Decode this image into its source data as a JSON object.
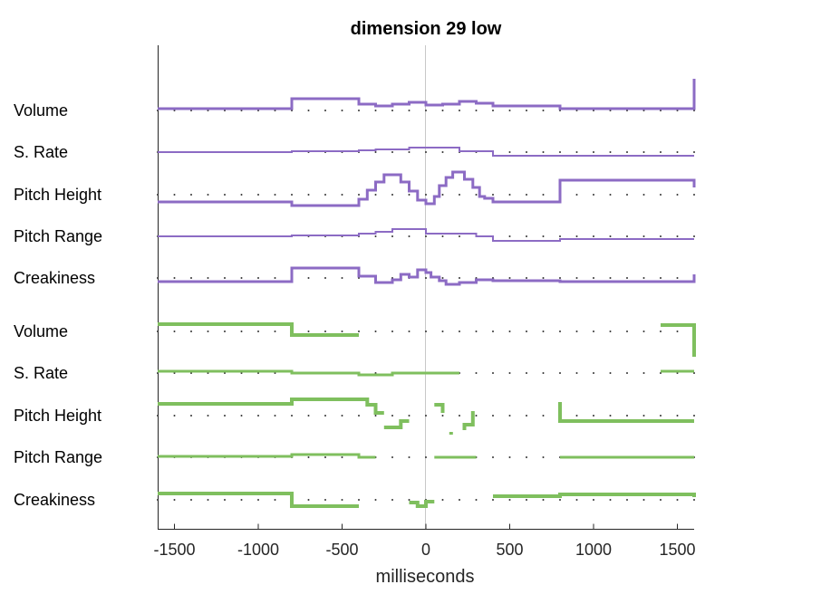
{
  "chart_data": {
    "type": "line",
    "title": "dimension 29 low",
    "xlabel": "milliseconds",
    "xlim": [
      -1600,
      1600
    ],
    "xticks": [
      -1500,
      -1000,
      -500,
      0,
      500,
      1000,
      1500
    ],
    "xtick_labels": [
      "-1500",
      "-1000",
      "-500",
      "0",
      "500",
      "1000",
      "1500"
    ],
    "zero_line": true,
    "baseline_dots": true,
    "colors": {
      "group1": "#8c6bc4",
      "group2": "#7fbf5e",
      "axis": "#262626",
      "zero": "#c8c8c8"
    },
    "series": [
      {
        "name": "Volume",
        "group": 1,
        "width": 3,
        "points": [
          [
            -1600,
            2
          ],
          [
            -800,
            2
          ],
          [
            -800,
            13
          ],
          [
            -400,
            13
          ],
          [
            -400,
            7
          ],
          [
            -300,
            7
          ],
          [
            -300,
            5
          ],
          [
            -200,
            5
          ],
          [
            -200,
            7
          ],
          [
            -100,
            7
          ],
          [
            -100,
            9
          ],
          [
            0,
            9
          ],
          [
            0,
            6
          ],
          [
            100,
            6
          ],
          [
            100,
            7
          ],
          [
            200,
            7
          ],
          [
            200,
            10
          ],
          [
            300,
            10
          ],
          [
            300,
            8
          ],
          [
            400,
            8
          ],
          [
            400,
            5
          ],
          [
            800,
            5
          ],
          [
            800,
            2
          ],
          [
            1600,
            2
          ],
          [
            1600,
            35
          ]
        ]
      },
      {
        "name": "S. Rate",
        "group": 1,
        "width": 2,
        "points": [
          [
            -1600,
            0
          ],
          [
            -800,
            0
          ],
          [
            -800,
            1
          ],
          [
            -400,
            1
          ],
          [
            -400,
            2
          ],
          [
            -300,
            2
          ],
          [
            -300,
            3
          ],
          [
            -100,
            3
          ],
          [
            -100,
            5
          ],
          [
            200,
            5
          ],
          [
            200,
            1
          ],
          [
            400,
            1
          ],
          [
            400,
            -4
          ],
          [
            800,
            -4
          ],
          [
            800,
            -4
          ],
          [
            1600,
            -4
          ]
        ]
      },
      {
        "name": "Pitch Height",
        "group": 1,
        "width": 3,
        "points": [
          [
            -1600,
            -8
          ],
          [
            -800,
            -8
          ],
          [
            -800,
            -12
          ],
          [
            -400,
            -12
          ],
          [
            -400,
            -5
          ],
          [
            -350,
            -5
          ],
          [
            -350,
            5
          ],
          [
            -300,
            5
          ],
          [
            -300,
            14
          ],
          [
            -250,
            14
          ],
          [
            -250,
            22
          ],
          [
            -150,
            22
          ],
          [
            -150,
            14
          ],
          [
            -100,
            14
          ],
          [
            -100,
            4
          ],
          [
            -50,
            4
          ],
          [
            -50,
            -6
          ],
          [
            0,
            -6
          ],
          [
            0,
            -10
          ],
          [
            50,
            -10
          ],
          [
            50,
            -2
          ],
          [
            80,
            -2
          ],
          [
            80,
            10
          ],
          [
            120,
            10
          ],
          [
            120,
            19
          ],
          [
            160,
            19
          ],
          [
            160,
            25
          ],
          [
            230,
            25
          ],
          [
            230,
            17
          ],
          [
            280,
            17
          ],
          [
            280,
            8
          ],
          [
            320,
            8
          ],
          [
            320,
            -2
          ],
          [
            350,
            -2
          ],
          [
            350,
            -4
          ],
          [
            400,
            -4
          ],
          [
            400,
            -8
          ],
          [
            800,
            -8
          ],
          [
            800,
            16
          ],
          [
            1600,
            16
          ],
          [
            1600,
            8
          ]
        ]
      },
      {
        "name": "Pitch Range",
        "group": 1,
        "width": 2,
        "points": [
          [
            -1600,
            0
          ],
          [
            -800,
            0
          ],
          [
            -800,
            1
          ],
          [
            -400,
            1
          ],
          [
            -400,
            3
          ],
          [
            -300,
            3
          ],
          [
            -300,
            5
          ],
          [
            -200,
            5
          ],
          [
            -200,
            8
          ],
          [
            0,
            8
          ],
          [
            0,
            3
          ],
          [
            300,
            3
          ],
          [
            300,
            0
          ],
          [
            400,
            0
          ],
          [
            400,
            -5
          ],
          [
            800,
            -5
          ],
          [
            800,
            -3
          ],
          [
            1600,
            -3
          ]
        ]
      },
      {
        "name": "Creakiness",
        "group": 1,
        "width": 3,
        "points": [
          [
            -1600,
            -4
          ],
          [
            -800,
            -4
          ],
          [
            -800,
            11
          ],
          [
            -400,
            11
          ],
          [
            -400,
            2
          ],
          [
            -300,
            2
          ],
          [
            -300,
            -5
          ],
          [
            -200,
            -5
          ],
          [
            -200,
            -2
          ],
          [
            -150,
            -2
          ],
          [
            -150,
            4
          ],
          [
            -100,
            4
          ],
          [
            -100,
            1
          ],
          [
            -50,
            1
          ],
          [
            -50,
            9
          ],
          [
            0,
            9
          ],
          [
            0,
            6
          ],
          [
            30,
            6
          ],
          [
            30,
            1
          ],
          [
            80,
            1
          ],
          [
            80,
            -3
          ],
          [
            120,
            -3
          ],
          [
            120,
            -7
          ],
          [
            200,
            -7
          ],
          [
            200,
            -5
          ],
          [
            300,
            -5
          ],
          [
            300,
            -2
          ],
          [
            400,
            -2
          ],
          [
            400,
            -3
          ],
          [
            800,
            -3
          ],
          [
            800,
            -4
          ],
          [
            1600,
            -4
          ],
          [
            1600,
            4
          ]
        ]
      },
      {
        "name": "Volume",
        "group": 2,
        "width": 4,
        "segments": [
          [
            [
              -1600,
              8
            ],
            [
              -800,
              8
            ],
            [
              -800,
              -4
            ],
            [
              -400,
              -4
            ]
          ],
          [
            [
              1400,
              7
            ],
            [
              1600,
              7
            ],
            [
              1600,
              -28
            ]
          ]
        ]
      },
      {
        "name": "S. Rate",
        "group": 2,
        "width": 3,
        "segments": [
          [
            [
              -1600,
              2
            ],
            [
              -800,
              2
            ],
            [
              -800,
              0
            ],
            [
              -400,
              0
            ],
            [
              -400,
              -2
            ],
            [
              -200,
              -2
            ],
            [
              -200,
              0
            ],
            [
              200,
              0
            ]
          ],
          [
            [
              1400,
              2
            ],
            [
              1600,
              2
            ]
          ]
        ]
      },
      {
        "name": "Pitch Height",
        "group": 2,
        "width": 4,
        "segments": [
          [
            [
              -1600,
              13
            ],
            [
              -800,
              13
            ],
            [
              -800,
              18
            ],
            [
              -350,
              18
            ],
            [
              -350,
              12
            ],
            [
              -300,
              12
            ],
            [
              -300,
              3
            ],
            [
              -250,
              3
            ]
          ],
          [
            [
              -250,
              -13
            ],
            [
              -150,
              -13
            ],
            [
              -150,
              -6
            ],
            [
              -100,
              -6
            ]
          ],
          [
            [
              50,
              12
            ],
            [
              100,
              12
            ],
            [
              100,
              3
            ]
          ],
          [
            [
              150,
              -18
            ],
            [
              150,
              -21
            ]
          ],
          [
            [
              230,
              -16
            ],
            [
              230,
              -10
            ],
            [
              280,
              -10
            ],
            [
              280,
              5
            ]
          ],
          [
            [
              800,
              15
            ],
            [
              800,
              -6
            ],
            [
              1600,
              -6
            ]
          ]
        ]
      },
      {
        "name": "Pitch Range",
        "group": 2,
        "width": 3,
        "segments": [
          [
            [
              -1600,
              1
            ],
            [
              -800,
              1
            ],
            [
              -800,
              3
            ],
            [
              -400,
              3
            ],
            [
              -400,
              0
            ],
            [
              -300,
              0
            ]
          ],
          [
            [
              50,
              0
            ],
            [
              300,
              0
            ]
          ],
          [
            [
              800,
              0
            ],
            [
              1600,
              0
            ]
          ]
        ]
      },
      {
        "name": "Creakiness",
        "group": 2,
        "width": 4,
        "segments": [
          [
            [
              -1600,
              7
            ],
            [
              -800,
              7
            ],
            [
              -800,
              -7
            ],
            [
              -400,
              -7
            ]
          ],
          [
            [
              -100,
              -3
            ],
            [
              -50,
              -3
            ],
            [
              -50,
              -7
            ],
            [
              0,
              -7
            ],
            [
              0,
              -2
            ],
            [
              50,
              -2
            ]
          ],
          [
            [
              400,
              4
            ],
            [
              800,
              4
            ],
            [
              800,
              6
            ],
            [
              1600,
              6
            ],
            [
              1600,
              3
            ]
          ]
        ]
      }
    ]
  }
}
